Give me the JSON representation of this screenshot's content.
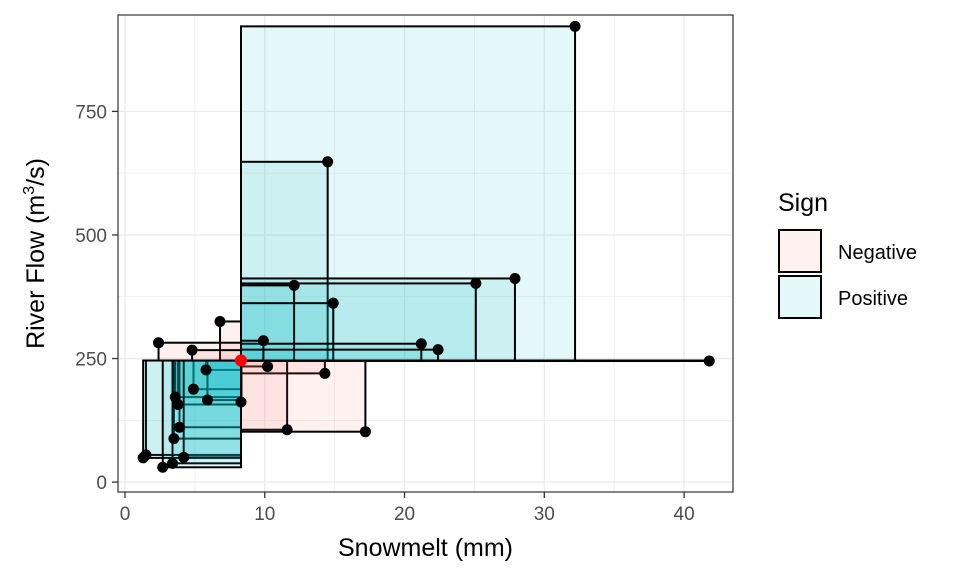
{
  "chart_data": {
    "type": "scatter",
    "xlabel": "Snowmelt (mm)",
    "ylabel_prefix": "River Flow (m",
    "ylabel_superscript": "3",
    "ylabel_suffix": "/s)",
    "xlim": [
      -0.5,
      43.5
    ],
    "ylim": [
      -20,
      945
    ],
    "x_ticks": [
      0,
      10,
      20,
      30,
      40
    ],
    "x_tick_labels": [
      "0",
      "10",
      "20",
      "30",
      "40"
    ],
    "y_ticks": [
      0,
      250,
      500,
      750
    ],
    "y_tick_labels": [
      "0",
      "250",
      "500",
      "750"
    ],
    "grid": true,
    "mean_point": {
      "x": 8.3,
      "y": 246
    },
    "points": [
      {
        "x": 32.2,
        "y": 922,
        "sign": "Positive"
      },
      {
        "x": 14.5,
        "y": 648,
        "sign": "Positive"
      },
      {
        "x": 27.9,
        "y": 412,
        "sign": "Positive"
      },
      {
        "x": 25.1,
        "y": 402,
        "sign": "Positive"
      },
      {
        "x": 12.1,
        "y": 398,
        "sign": "Positive"
      },
      {
        "x": 14.9,
        "y": 362,
        "sign": "Positive"
      },
      {
        "x": 41.8,
        "y": 245,
        "sign": "Negative"
      },
      {
        "x": 21.2,
        "y": 280,
        "sign": "Positive"
      },
      {
        "x": 22.4,
        "y": 268,
        "sign": "Positive"
      },
      {
        "x": 6.8,
        "y": 325,
        "sign": "Negative"
      },
      {
        "x": 9.9,
        "y": 286,
        "sign": "Positive"
      },
      {
        "x": 2.4,
        "y": 282,
        "sign": "Negative"
      },
      {
        "x": 4.8,
        "y": 267,
        "sign": "Negative"
      },
      {
        "x": 10.2,
        "y": 234,
        "sign": "Negative"
      },
      {
        "x": 14.3,
        "y": 220,
        "sign": "Negative"
      },
      {
        "x": 5.8,
        "y": 227,
        "sign": "Positive"
      },
      {
        "x": 4.9,
        "y": 188,
        "sign": "Positive"
      },
      {
        "x": 3.6,
        "y": 172,
        "sign": "Positive"
      },
      {
        "x": 3.8,
        "y": 157,
        "sign": "Positive"
      },
      {
        "x": 5.9,
        "y": 166,
        "sign": "Positive"
      },
      {
        "x": 8.3,
        "y": 162,
        "sign": "Positive"
      },
      {
        "x": 11.6,
        "y": 106,
        "sign": "Negative"
      },
      {
        "x": 17.2,
        "y": 102,
        "sign": "Negative"
      },
      {
        "x": 3.9,
        "y": 111,
        "sign": "Positive"
      },
      {
        "x": 3.5,
        "y": 88,
        "sign": "Positive"
      },
      {
        "x": 1.5,
        "y": 55,
        "sign": "Positive"
      },
      {
        "x": 1.3,
        "y": 49,
        "sign": "Positive"
      },
      {
        "x": 4.2,
        "y": 50,
        "sign": "Positive"
      },
      {
        "x": 3.4,
        "y": 38,
        "sign": "Positive"
      },
      {
        "x": 2.7,
        "y": 30,
        "sign": "Positive"
      }
    ],
    "legend": {
      "title": "Sign",
      "placement": "right",
      "items": [
        {
          "label": "Negative",
          "color": "#f8766d"
        },
        {
          "label": "Positive",
          "color": "#00bfc4"
        }
      ]
    },
    "colors": {
      "negative": "#f8766d",
      "positive": "#00bfc4",
      "mean_point": "#ff0000",
      "points": "#000000",
      "grid": "#ebebeb",
      "panel_border": "#333333",
      "background": "#ffffff"
    }
  }
}
